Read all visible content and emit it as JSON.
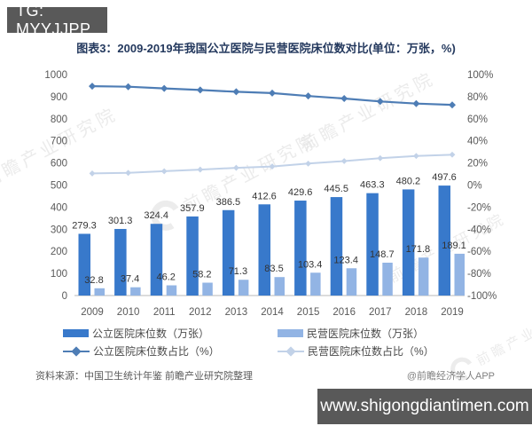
{
  "header": {
    "tag_label": "TG: MYYJJPP"
  },
  "title": "图表3：2009-2019年我国公立医院与民营医院床位数对比(单位：万张，%)",
  "chart_data": {
    "type": "bar",
    "subtype": "grouped-bar-with-dual-axis-lines",
    "title": "图表3：2009-2019年我国公立医院与民营医院床位数对比(单位：万张，%)",
    "categories": [
      "2009",
      "2010",
      "2011",
      "2012",
      "2013",
      "2014",
      "2015",
      "2016",
      "2017",
      "2018",
      "2019"
    ],
    "series": [
      {
        "name": "公立医院床位数（万张）",
        "type": "bar",
        "axis": "left",
        "color": "#3879CB",
        "values": [
          279.3,
          301.3,
          324.4,
          357.9,
          386.5,
          412.6,
          429.6,
          445.5,
          463.3,
          480.2,
          497.6
        ]
      },
      {
        "name": "民营医院床位数（万张）",
        "type": "bar",
        "axis": "left",
        "color": "#92B4E4",
        "values": [
          32.8,
          37.4,
          46.2,
          58.2,
          71.3,
          83.5,
          103.4,
          123.4,
          148.7,
          171.8,
          189.1
        ]
      },
      {
        "name": "公立医院床位数占比（%）",
        "type": "line",
        "axis": "right",
        "color": "#4E7DB5",
        "values": [
          89.5,
          89.0,
          87.5,
          86.0,
          84.4,
          83.2,
          80.6,
          78.3,
          75.7,
          73.7,
          72.5
        ]
      },
      {
        "name": "民营医院床位数占比（%）",
        "type": "line",
        "axis": "right",
        "color": "#C2D2E8",
        "values": [
          10.5,
          11.0,
          12.5,
          14.0,
          15.6,
          16.8,
          19.4,
          21.7,
          24.3,
          26.3,
          27.5
        ]
      }
    ],
    "left_axis": {
      "min": 0,
      "max": 1000,
      "step": 100
    },
    "right_axis": {
      "min": -100,
      "max": 100,
      "step": 20,
      "format": "percent"
    },
    "grid": false,
    "legend_position": "bottom"
  },
  "watermark": {
    "text": "前瞻产业研究院"
  },
  "source": {
    "label": "资料来源：中国卫生统计年鉴 前瞻产业研究院整理",
    "credit": "@前瞻经济学人APP"
  },
  "footer": {
    "site": "www.shigongdiantimen.com"
  },
  "colors": {
    "header_bg": "#595959",
    "footer_bg": "#595959",
    "title_text": "#24395E",
    "axis_text": "#595959",
    "bar_label_text": "#333333",
    "baseline": "#C6C6C6"
  }
}
